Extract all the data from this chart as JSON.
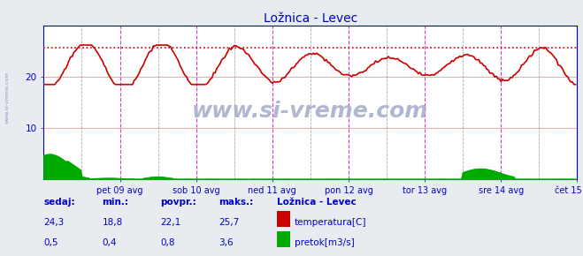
{
  "title": "Ložnica - Levec",
  "title_color": "#0000cc",
  "bg_color": "#e8ecf0",
  "plot_bg_color": "#ffffff",
  "x_labels": [
    "pet 09 avg",
    "sob 10 avg",
    "ned 11 avg",
    "pon 12 avg",
    "tor 13 avg",
    "sre 14 avg",
    "čet 15 avg"
  ],
  "x_ticks_pos": [
    48,
    96,
    144,
    192,
    240,
    288,
    336
  ],
  "dark_ticks_pos": [
    24,
    72,
    120,
    168,
    216,
    264,
    312
  ],
  "total_points": 336,
  "y_ticks": [
    10,
    20
  ],
  "dotted_line_y": 25.7,
  "temp_color": "#cc0000",
  "flow_color": "#00aa00",
  "grid_color_h": "#ffaaaa",
  "grid_color_v_pink": "#cc44cc",
  "grid_color_v_dark": "#888888",
  "axis_color": "#0000cc",
  "tick_color": "#0000cc",
  "watermark": "www.si-vreme.com",
  "watermark_color": "#aab0cc",
  "side_label": "www.si-vreme.com",
  "side_label_color": "#8899bb",
  "legend_title": "Ložnica - Levec",
  "legend_title_color": "#0000cc",
  "label_sedaj": "sedaj:",
  "label_min": "min.:",
  "label_povpr": "povpr.:",
  "label_maks": "maks.:",
  "val_sedaj_temp": "24,3",
  "val_min_temp": "18,8",
  "val_povpr_temp": "22,1",
  "val_maks_temp": "25,7",
  "val_sedaj_flow": "0,5",
  "val_min_flow": "0,4",
  "val_povpr_flow": "0,8",
  "val_maks_flow": "3,6",
  "legend_temp": "temperatura[C]",
  "legend_flow": "pretok[m3/s]",
  "flow_max_display": 5.0,
  "y_max": 30,
  "y_min": 0
}
